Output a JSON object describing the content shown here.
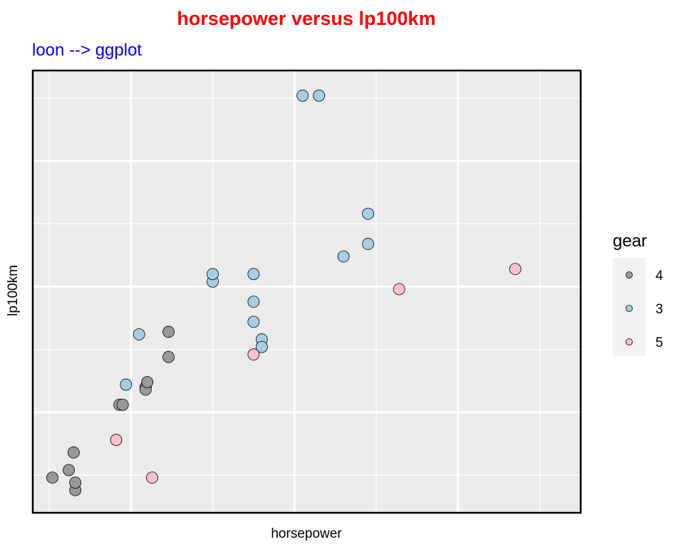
{
  "chart_data": {
    "type": "scatter",
    "title": "horsepower versus lp100km",
    "subtitle": "loon --> ggplot",
    "xlabel": "horsepower",
    "ylabel": "lp100km",
    "xlim": [
      40,
      375
    ],
    "ylim": [
      6.0,
      23.6
    ],
    "x_ticks": [
      100,
      200,
      300
    ],
    "x_minor": [
      50,
      150,
      250,
      350
    ],
    "y_ticks": [
      10,
      15,
      20
    ],
    "y_minor": [
      7.5,
      12.5,
      17.5,
      22.5
    ],
    "grid": true,
    "x_tick_labels_shown": false,
    "y_tick_labels_shown": false,
    "legend": {
      "title": "gear",
      "position": "right",
      "entries": [
        {
          "label": "4",
          "color": "#999999"
        },
        {
          "label": "3",
          "color": "#A6CEE3"
        },
        {
          "label": "5",
          "color": "#FFC0CB"
        }
      ]
    },
    "colors": {
      "title": "#FF0000",
      "subtitle": "#0000FF",
      "panel": "#EBEBEB",
      "grid": "#FFFFFF",
      "border": "#000000",
      "point_stroke": "#000000"
    },
    "series": [
      {
        "name": "4",
        "color": "#999999",
        "points": [
          [
            52,
            7.4
          ],
          [
            62,
            7.7
          ],
          [
            66,
            6.9
          ],
          [
            66,
            7.2
          ],
          [
            65,
            8.4
          ],
          [
            93,
            10.3
          ],
          [
            95,
            10.3
          ],
          [
            109,
            11.0
          ],
          [
            109,
            10.9
          ],
          [
            110,
            11.2
          ],
          [
            123,
            12.2
          ],
          [
            123,
            13.2
          ]
        ]
      },
      {
        "name": "3",
        "color": "#A6CEE3",
        "points": [
          [
            97,
            11.1
          ],
          [
            105,
            13.1
          ],
          [
            150,
            15.2
          ],
          [
            150,
            15.5
          ],
          [
            175,
            13.6
          ],
          [
            175,
            15.5
          ],
          [
            175,
            14.4
          ],
          [
            180,
            12.9
          ],
          [
            180,
            12.6
          ],
          [
            205,
            22.6
          ],
          [
            215,
            22.6
          ],
          [
            230,
            16.2
          ],
          [
            245,
            16.7
          ],
          [
            245,
            17.9
          ]
        ]
      },
      {
        "name": "5",
        "color": "#FFC0CB",
        "points": [
          [
            91,
            8.9
          ],
          [
            113,
            7.4
          ],
          [
            175,
            12.3
          ],
          [
            264,
            14.9
          ],
          [
            335,
            15.7
          ]
        ]
      }
    ]
  }
}
